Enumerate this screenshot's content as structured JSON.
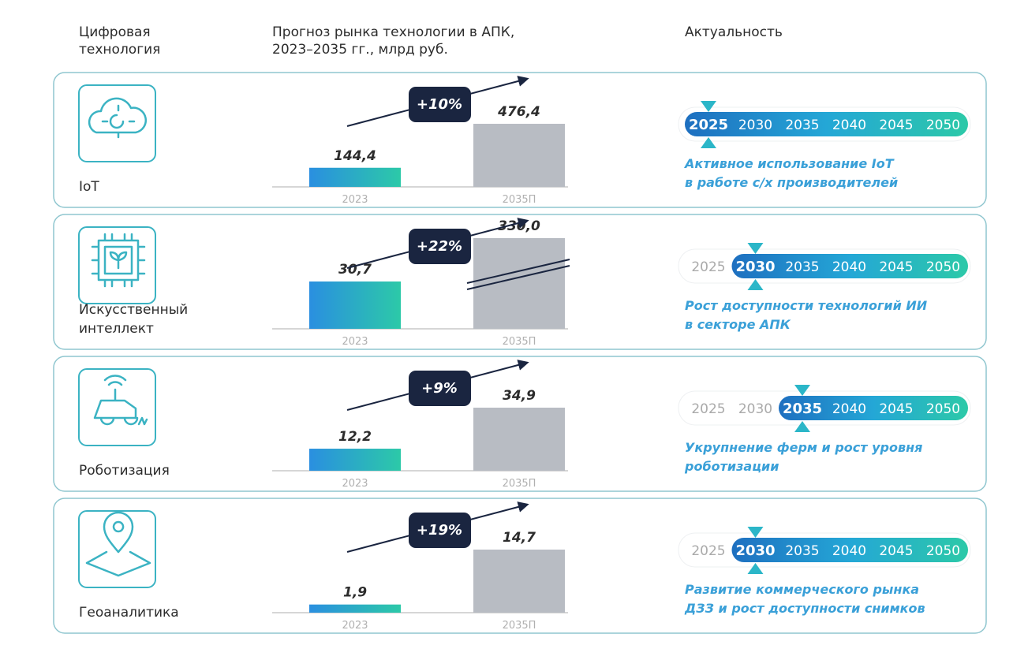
{
  "header": {
    "col1": [
      "Цифровая",
      "технология"
    ],
    "col2": [
      "Прогноз рынка технологии в АПК,",
      "2023–2035 гг., млрд руб."
    ],
    "col3": "Актуальность"
  },
  "categories": [
    "2023",
    "2035П"
  ],
  "years": [
    "2025",
    "2030",
    "2035",
    "2040",
    "2045",
    "2050"
  ],
  "rows": [
    {
      "name": [
        "IoT"
      ],
      "values": [
        144.4,
        476.4
      ],
      "value_labels": [
        "144,4",
        "476,4"
      ],
      "growth": "+10%",
      "highlight": "2025",
      "description": [
        "Активное использование IoT",
        "в работе с/х производителей"
      ]
    },
    {
      "name": [
        "Искусственный",
        "интеллект"
      ],
      "values": [
        30.7,
        330.0
      ],
      "value_labels": [
        "30,7",
        "330,0"
      ],
      "growth": "+22%",
      "broken": true,
      "highlight": "2030",
      "description": [
        "Рост доступности технологий ИИ",
        "в секторе АПК"
      ]
    },
    {
      "name": [
        "Роботизация"
      ],
      "values": [
        12.2,
        34.9
      ],
      "value_labels": [
        "12,2",
        "34,9"
      ],
      "growth": "+9%",
      "highlight": "2035",
      "description": [
        "Укрупнение ферм и рост уровня",
        "роботизации"
      ]
    },
    {
      "name": [
        "Геоаналитика"
      ],
      "values": [
        1.9,
        14.7
      ],
      "value_labels": [
        "1,9",
        "14,7"
      ],
      "growth": "+19%",
      "highlight": "2030",
      "description": [
        "Развитие коммерческого рынка",
        "ДЗЗ и рост доступности снимков"
      ]
    }
  ]
}
